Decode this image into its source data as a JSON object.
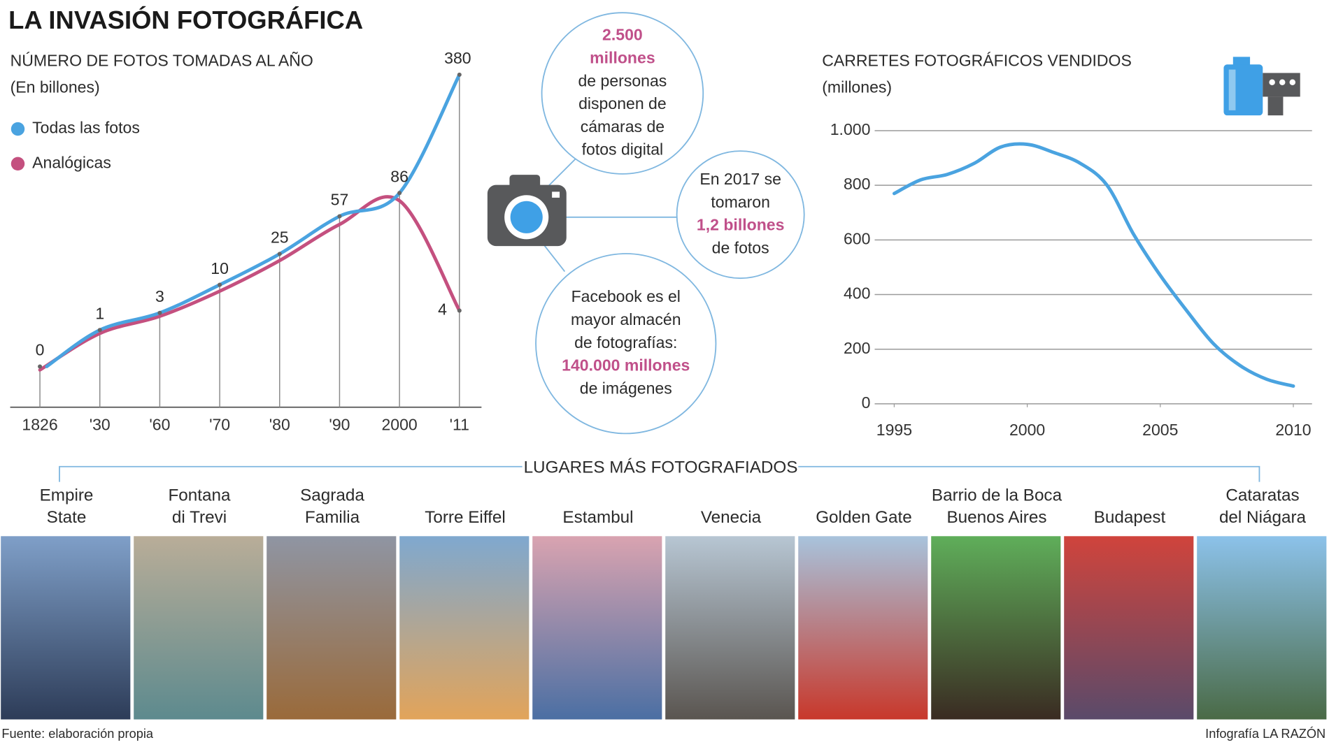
{
  "title": "LA INVASIÓN FOTOGRÁFICA",
  "chart_data": [
    {
      "type": "line",
      "title": "NÚMERO DE FOTOS TOMADAS AL AÑO",
      "subtitle": "(En billones)",
      "categories": [
        "1826",
        "'30",
        "'60",
        "'70",
        "'80",
        "'90",
        "2000",
        "'11"
      ],
      "series": [
        {
          "name": "Todas las fotos",
          "color": "#4aa3e0",
          "values": [
            0,
            1,
            3,
            10,
            25,
            57,
            86,
            380
          ]
        },
        {
          "name": "Analógicas",
          "color": "#c4507f",
          "values": [
            0,
            1,
            3,
            9,
            23,
            52,
            80,
            4
          ]
        }
      ]
    },
    {
      "type": "line",
      "title": "CARRETES FOTOGRÁFICOS VENDIDOS",
      "subtitle": "(millones)",
      "x": [
        1995,
        1996,
        1997,
        1998,
        1999,
        2000,
        2001,
        2002,
        2003,
        2004,
        2005,
        2006,
        2007,
        2008,
        2009,
        2010
      ],
      "values": [
        770,
        820,
        840,
        880,
        940,
        950,
        920,
        880,
        800,
        620,
        470,
        340,
        220,
        140,
        90,
        65
      ],
      "color": "#4aa3e0",
      "xlim": [
        1995,
        2010
      ],
      "ylim": [
        0,
        1000
      ],
      "xticks": [
        1995,
        2000,
        2005,
        2010
      ],
      "yticks": [
        0,
        200,
        400,
        600,
        800,
        {
          "value": 1000,
          "label": "1.000"
        }
      ],
      "grid": true
    }
  ],
  "callouts": [
    {
      "lines": [
        {
          "text": "2.500",
          "highlight": true
        },
        {
          "text": "millones",
          "highlight": true
        },
        {
          "text": "de personas"
        },
        {
          "text": "disponen de"
        },
        {
          "text": "cámaras de"
        },
        {
          "text": "fotos digital"
        }
      ]
    },
    {
      "lines": [
        {
          "text": "En 2017 se"
        },
        {
          "text": "tomaron"
        },
        {
          "text": "1,2 billones",
          "highlight": true
        },
        {
          "text": "de fotos"
        }
      ]
    },
    {
      "lines": [
        {
          "text": "Facebook es el"
        },
        {
          "text": "mayor almacén"
        },
        {
          "text": "de fotografías:"
        },
        {
          "text": "140.000 millones",
          "highlight": true
        },
        {
          "text": "de imágenes"
        }
      ]
    }
  ],
  "places": {
    "title": "LUGARES MÁS FOTOGRAFIADOS",
    "items": [
      {
        "name": [
          "Empire",
          "State"
        ]
      },
      {
        "name": [
          "Fontana",
          "di Trevi"
        ]
      },
      {
        "name": [
          "Sagrada",
          "Familia"
        ]
      },
      {
        "name": [
          "Torre Eiffel"
        ]
      },
      {
        "name": [
          "Estambul"
        ]
      },
      {
        "name": [
          "Venecia"
        ]
      },
      {
        "name": [
          "Golden Gate"
        ]
      },
      {
        "name": [
          "Barrio de la Boca",
          "Buenos Aires"
        ]
      },
      {
        "name": [
          "Budapest"
        ]
      },
      {
        "name": [
          "Cataratas",
          "del Niágara"
        ]
      }
    ]
  },
  "footer": {
    "source": "Fuente: elaboración propia",
    "credit": "Infografía LA RAZÓN"
  }
}
